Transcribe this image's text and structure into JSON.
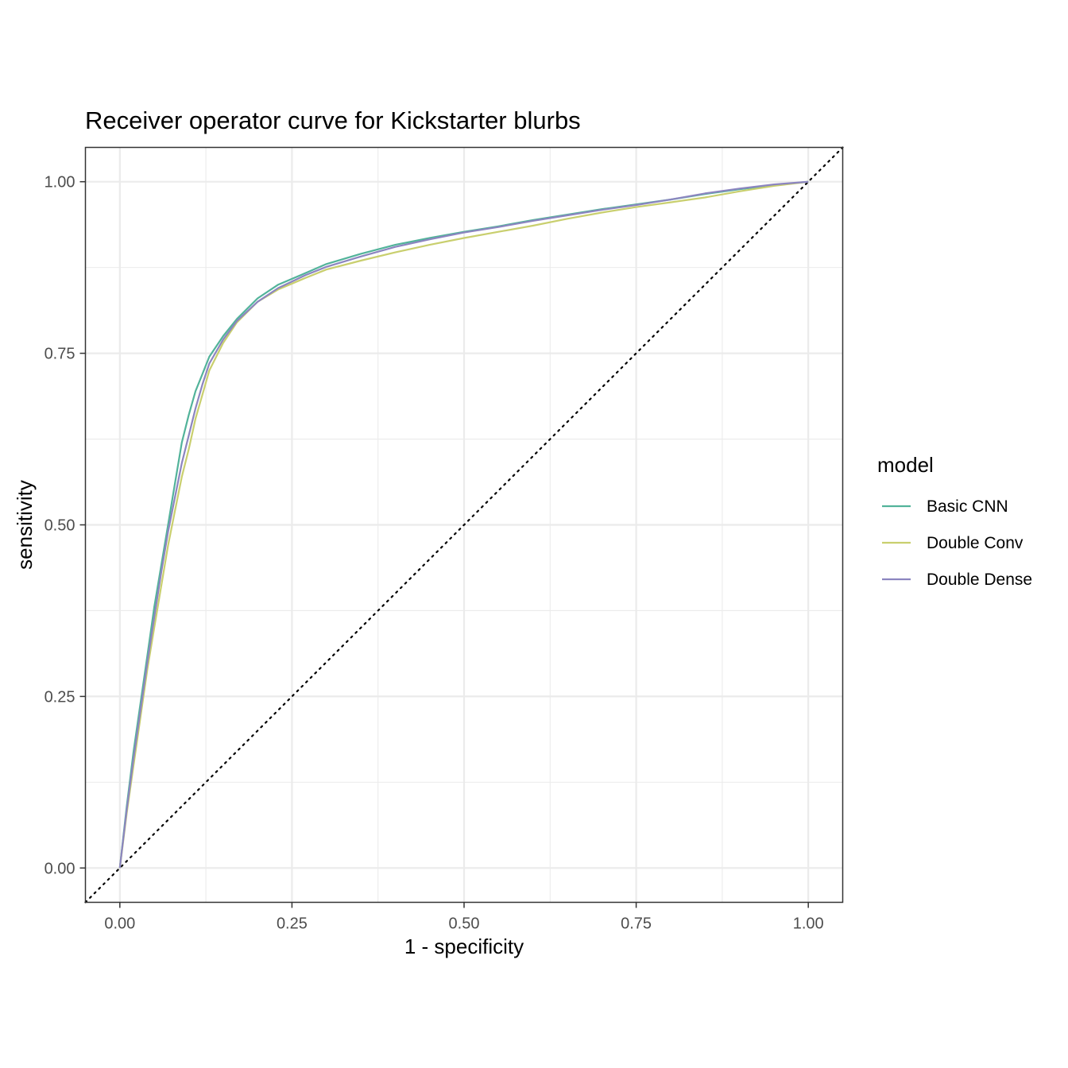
{
  "chart_data": {
    "type": "line",
    "title": "Receiver operator curve for Kickstarter blurbs",
    "xlabel": "1 - specificity",
    "ylabel": "sensitivity",
    "xlim": [
      -0.05,
      1.05
    ],
    "ylim": [
      -0.05,
      1.05
    ],
    "x_ticks": [
      "0.00",
      "0.25",
      "0.50",
      "0.75",
      "1.00"
    ],
    "y_ticks": [
      "0.00",
      "0.25",
      "0.50",
      "0.75",
      "1.00"
    ],
    "grid": true,
    "reference_line": "diagonal dotted",
    "legend": {
      "title": "model",
      "position": "right"
    },
    "series": [
      {
        "name": "Basic CNN",
        "color": "#52b39a",
        "points": [
          [
            0,
            0
          ],
          [
            0.01,
            0.09
          ],
          [
            0.02,
            0.17
          ],
          [
            0.03,
            0.24
          ],
          [
            0.04,
            0.31
          ],
          [
            0.05,
            0.38
          ],
          [
            0.06,
            0.44
          ],
          [
            0.07,
            0.5
          ],
          [
            0.08,
            0.56
          ],
          [
            0.09,
            0.62
          ],
          [
            0.1,
            0.66
          ],
          [
            0.11,
            0.695
          ],
          [
            0.12,
            0.72
          ],
          [
            0.13,
            0.745
          ],
          [
            0.15,
            0.775
          ],
          [
            0.17,
            0.8
          ],
          [
            0.2,
            0.83
          ],
          [
            0.23,
            0.85
          ],
          [
            0.27,
            0.867
          ],
          [
            0.3,
            0.88
          ],
          [
            0.35,
            0.895
          ],
          [
            0.4,
            0.908
          ],
          [
            0.45,
            0.918
          ],
          [
            0.5,
            0.927
          ],
          [
            0.55,
            0.935
          ],
          [
            0.6,
            0.944
          ],
          [
            0.65,
            0.952
          ],
          [
            0.7,
            0.96
          ],
          [
            0.75,
            0.967
          ],
          [
            0.8,
            0.974
          ],
          [
            0.85,
            0.982
          ],
          [
            0.9,
            0.989
          ],
          [
            0.95,
            0.995
          ],
          [
            1,
            1
          ]
        ]
      },
      {
        "name": "Double Conv",
        "color": "#c9cf6e",
        "points": [
          [
            0,
            0
          ],
          [
            0.01,
            0.08
          ],
          [
            0.02,
            0.15
          ],
          [
            0.03,
            0.22
          ],
          [
            0.04,
            0.29
          ],
          [
            0.05,
            0.35
          ],
          [
            0.06,
            0.41
          ],
          [
            0.07,
            0.47
          ],
          [
            0.08,
            0.52
          ],
          [
            0.09,
            0.57
          ],
          [
            0.1,
            0.61
          ],
          [
            0.11,
            0.655
          ],
          [
            0.12,
            0.69
          ],
          [
            0.13,
            0.725
          ],
          [
            0.15,
            0.765
          ],
          [
            0.17,
            0.795
          ],
          [
            0.2,
            0.825
          ],
          [
            0.23,
            0.843
          ],
          [
            0.27,
            0.86
          ],
          [
            0.3,
            0.872
          ],
          [
            0.35,
            0.885
          ],
          [
            0.4,
            0.897
          ],
          [
            0.45,
            0.908
          ],
          [
            0.5,
            0.918
          ],
          [
            0.55,
            0.927
          ],
          [
            0.6,
            0.936
          ],
          [
            0.65,
            0.946
          ],
          [
            0.7,
            0.955
          ],
          [
            0.75,
            0.963
          ],
          [
            0.8,
            0.97
          ],
          [
            0.85,
            0.977
          ],
          [
            0.9,
            0.986
          ],
          [
            0.95,
            0.994
          ],
          [
            1,
            1
          ]
        ]
      },
      {
        "name": "Double Dense",
        "color": "#8c85c0",
        "points": [
          [
            0,
            0
          ],
          [
            0.01,
            0.085
          ],
          [
            0.02,
            0.16
          ],
          [
            0.03,
            0.23
          ],
          [
            0.04,
            0.3
          ],
          [
            0.05,
            0.365
          ],
          [
            0.06,
            0.43
          ],
          [
            0.07,
            0.49
          ],
          [
            0.08,
            0.54
          ],
          [
            0.09,
            0.59
          ],
          [
            0.1,
            0.63
          ],
          [
            0.11,
            0.67
          ],
          [
            0.12,
            0.705
          ],
          [
            0.13,
            0.735
          ],
          [
            0.15,
            0.77
          ],
          [
            0.17,
            0.797
          ],
          [
            0.2,
            0.825
          ],
          [
            0.23,
            0.845
          ],
          [
            0.27,
            0.864
          ],
          [
            0.3,
            0.876
          ],
          [
            0.35,
            0.891
          ],
          [
            0.4,
            0.905
          ],
          [
            0.45,
            0.916
          ],
          [
            0.5,
            0.926
          ],
          [
            0.55,
            0.934
          ],
          [
            0.6,
            0.943
          ],
          [
            0.65,
            0.951
          ],
          [
            0.7,
            0.959
          ],
          [
            0.75,
            0.966
          ],
          [
            0.8,
            0.974
          ],
          [
            0.85,
            0.983
          ],
          [
            0.9,
            0.99
          ],
          [
            0.95,
            0.996
          ],
          [
            1,
            1
          ]
        ]
      }
    ]
  }
}
